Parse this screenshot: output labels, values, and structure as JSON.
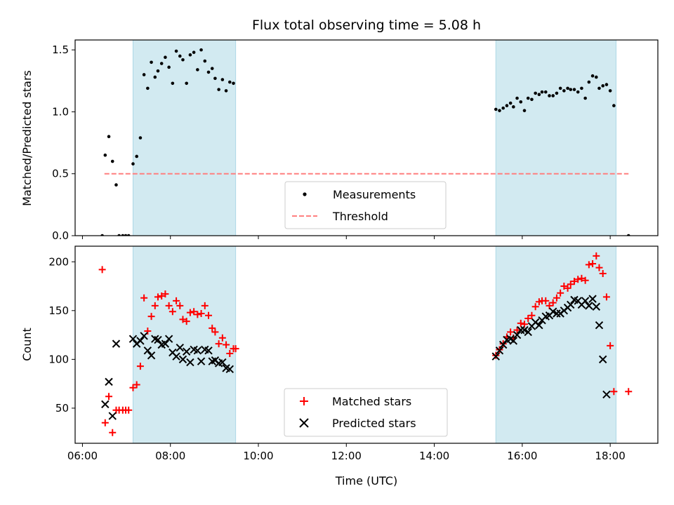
{
  "title": "Flux total observing time = 5.08 h",
  "xlabel": "Time (UTC)",
  "x_ticks": [
    "06:00",
    "08:00",
    "10:00",
    "12:00",
    "14:00",
    "16:00",
    "18:00"
  ],
  "colors": {
    "measurements": "#000000",
    "threshold": "#ff7f7f",
    "matched": "#ff0000",
    "predicted": "#000000",
    "span": "#add8e6"
  },
  "chart_data": [
    {
      "type": "scatter",
      "ylabel": "Matched/Predicted stars",
      "xlim": [
        "05:50",
        "19:05"
      ],
      "ylim": [
        0,
        1.58
      ],
      "y_ticks": [
        "0.0",
        "0.5",
        "1.0",
        "1.5"
      ],
      "grid": false,
      "legend_location": "lower center",
      "shaded_spans": [
        [
          "07:09",
          "09:29"
        ],
        [
          "15:24",
          "18:08"
        ]
      ],
      "threshold": {
        "name": "Threshold",
        "y": 0.5,
        "x": [
          "06:30",
          "18:25"
        ]
      },
      "series": [
        {
          "name": "Measurements",
          "points": [
            [
              "06:27",
              0.0
            ],
            [
              "06:31",
              0.65
            ],
            [
              "06:36",
              0.8
            ],
            [
              "06:41",
              0.6
            ],
            [
              "06:46",
              0.41
            ],
            [
              "06:50",
              0.0
            ],
            [
              "06:55",
              0.0
            ],
            [
              "06:59",
              0.0
            ],
            [
              "07:03",
              0.0
            ],
            [
              "07:09",
              0.58
            ],
            [
              "07:14",
              0.64
            ],
            [
              "07:19",
              0.79
            ],
            [
              "07:24",
              1.3
            ],
            [
              "07:29",
              1.19
            ],
            [
              "07:34",
              1.4
            ],
            [
              "07:39",
              1.28
            ],
            [
              "07:43",
              1.33
            ],
            [
              "07:48",
              1.39
            ],
            [
              "07:53",
              1.44
            ],
            [
              "07:58",
              1.36
            ],
            [
              "08:03",
              1.23
            ],
            [
              "08:08",
              1.49
            ],
            [
              "08:13",
              1.45
            ],
            [
              "08:17",
              1.42
            ],
            [
              "08:22",
              1.23
            ],
            [
              "08:27",
              1.46
            ],
            [
              "08:32",
              1.48
            ],
            [
              "08:37",
              1.34
            ],
            [
              "08:42",
              1.5
            ],
            [
              "08:47",
              1.41
            ],
            [
              "08:52",
              1.32
            ],
            [
              "08:57",
              1.35
            ],
            [
              "09:01",
              1.27
            ],
            [
              "09:06",
              1.18
            ],
            [
              "09:11",
              1.26
            ],
            [
              "09:16",
              1.17
            ],
            [
              "09:21",
              1.24
            ],
            [
              "09:26",
              1.23
            ],
            [
              "15:24",
              1.02
            ],
            [
              "15:29",
              1.01
            ],
            [
              "15:34",
              1.03
            ],
            [
              "15:39",
              1.05
            ],
            [
              "15:44",
              1.07
            ],
            [
              "15:48",
              1.04
            ],
            [
              "15:53",
              1.11
            ],
            [
              "15:58",
              1.08
            ],
            [
              "16:03",
              1.01
            ],
            [
              "16:08",
              1.11
            ],
            [
              "16:13",
              1.1
            ],
            [
              "16:18",
              1.15
            ],
            [
              "16:23",
              1.14
            ],
            [
              "16:27",
              1.16
            ],
            [
              "16:32",
              1.16
            ],
            [
              "16:37",
              1.13
            ],
            [
              "16:42",
              1.13
            ],
            [
              "16:47",
              1.15
            ],
            [
              "16:52",
              1.19
            ],
            [
              "16:57",
              1.17
            ],
            [
              "17:02",
              1.19
            ],
            [
              "17:06",
              1.18
            ],
            [
              "17:11",
              1.18
            ],
            [
              "17:16",
              1.16
            ],
            [
              "17:21",
              1.19
            ],
            [
              "17:26",
              1.11
            ],
            [
              "17:31",
              1.24
            ],
            [
              "17:36",
              1.29
            ],
            [
              "17:41",
              1.28
            ],
            [
              "17:45",
              1.19
            ],
            [
              "17:50",
              1.21
            ],
            [
              "17:55",
              1.22
            ],
            [
              "18:00",
              1.17
            ],
            [
              "18:05",
              1.05
            ],
            [
              "18:25",
              0.0
            ]
          ]
        }
      ]
    },
    {
      "type": "scatter",
      "ylabel": "Count",
      "xlim": [
        "05:50",
        "19:05"
      ],
      "ylim": [
        14,
        216
      ],
      "y_ticks": [
        "50",
        "100",
        "150",
        "200"
      ],
      "grid": false,
      "legend_location": "lower center",
      "shaded_spans": [
        [
          "07:09",
          "09:29"
        ],
        [
          "15:24",
          "18:08"
        ]
      ],
      "series": [
        {
          "name": "Matched stars",
          "marker": "plus",
          "points": [
            [
              "06:27",
              192
            ],
            [
              "06:31",
              35
            ],
            [
              "06:36",
              62
            ],
            [
              "06:41",
              25
            ],
            [
              "06:46",
              48
            ],
            [
              "06:50",
              48
            ],
            [
              "06:55",
              48
            ],
            [
              "06:59",
              48
            ],
            [
              "07:03",
              48
            ],
            [
              "07:09",
              71
            ],
            [
              "07:14",
              74
            ],
            [
              "07:19",
              93
            ],
            [
              "07:24",
              163
            ],
            [
              "07:29",
              129
            ],
            [
              "07:34",
              144
            ],
            [
              "07:39",
              155
            ],
            [
              "07:43",
              164
            ],
            [
              "07:48",
              165
            ],
            [
              "07:53",
              167
            ],
            [
              "07:58",
              155
            ],
            [
              "08:03",
              149
            ],
            [
              "08:08",
              160
            ],
            [
              "08:13",
              155
            ],
            [
              "08:17",
              141
            ],
            [
              "08:22",
              139
            ],
            [
              "08:27",
              148
            ],
            [
              "08:32",
              149
            ],
            [
              "08:37",
              146
            ],
            [
              "08:42",
              147
            ],
            [
              "08:47",
              155
            ],
            [
              "08:52",
              145
            ],
            [
              "08:57",
              132
            ],
            [
              "09:01",
              128
            ],
            [
              "09:06",
              116
            ],
            [
              "09:11",
              122
            ],
            [
              "09:16",
              115
            ],
            [
              "09:21",
              106
            ],
            [
              "09:26",
              111
            ],
            [
              "09:29",
              111
            ],
            [
              "15:24",
              104
            ],
            [
              "15:29",
              110
            ],
            [
              "15:34",
              116
            ],
            [
              "15:39",
              123
            ],
            [
              "15:44",
              128
            ],
            [
              "15:48",
              122
            ],
            [
              "15:53",
              130
            ],
            [
              "15:58",
              137
            ],
            [
              "16:03",
              136
            ],
            [
              "16:08",
              142
            ],
            [
              "16:13",
              145
            ],
            [
              "16:18",
              154
            ],
            [
              "16:23",
              159
            ],
            [
              "16:27",
              160
            ],
            [
              "16:32",
              160
            ],
            [
              "16:37",
              155
            ],
            [
              "16:42",
              158
            ],
            [
              "16:47",
              163
            ],
            [
              "16:52",
              168
            ],
            [
              "16:57",
              175
            ],
            [
              "17:02",
              173
            ],
            [
              "17:06",
              177
            ],
            [
              "17:11",
              180
            ],
            [
              "17:16",
              182
            ],
            [
              "17:21",
              183
            ],
            [
              "17:26",
              181
            ],
            [
              "17:31",
              197
            ],
            [
              "17:36",
              198
            ],
            [
              "17:41",
              206
            ],
            [
              "17:45",
              194
            ],
            [
              "17:50",
              188
            ],
            [
              "17:55",
              164
            ],
            [
              "18:00",
              114
            ],
            [
              "18:05",
              67
            ],
            [
              "18:25",
              67
            ]
          ]
        },
        {
          "name": "Predicted stars",
          "marker": "x",
          "points": [
            [
              "06:31",
              54
            ],
            [
              "06:36",
              77
            ],
            [
              "06:41",
              42
            ],
            [
              "06:46",
              116
            ],
            [
              "07:09",
              121
            ],
            [
              "07:14",
              116
            ],
            [
              "07:19",
              119
            ],
            [
              "07:24",
              124
            ],
            [
              "07:29",
              109
            ],
            [
              "07:34",
              104
            ],
            [
              "07:39",
              121
            ],
            [
              "07:43",
              120
            ],
            [
              "07:48",
              115
            ],
            [
              "07:53",
              116
            ],
            [
              "07:58",
              121
            ],
            [
              "08:03",
              107
            ],
            [
              "08:08",
              103
            ],
            [
              "08:13",
              112
            ],
            [
              "08:17",
              100
            ],
            [
              "08:22",
              108
            ],
            [
              "08:27",
              97
            ],
            [
              "08:32",
              110
            ],
            [
              "08:37",
              109
            ],
            [
              "08:42",
              98
            ],
            [
              "08:47",
              110
            ],
            [
              "08:52",
              109
            ],
            [
              "08:57",
              98
            ],
            [
              "09:01",
              99
            ],
            [
              "09:06",
              96
            ],
            [
              "09:11",
              97
            ],
            [
              "09:16",
              91
            ],
            [
              "09:21",
              90
            ],
            [
              "15:24",
              103
            ],
            [
              "15:29",
              109
            ],
            [
              "15:34",
              115
            ],
            [
              "15:39",
              120
            ],
            [
              "15:44",
              121
            ],
            [
              "15:48",
              119
            ],
            [
              "15:53",
              125
            ],
            [
              "15:58",
              130
            ],
            [
              "16:03",
              130
            ],
            [
              "16:08",
              128
            ],
            [
              "16:13",
              134
            ],
            [
              "16:18",
              138
            ],
            [
              "16:23",
              135
            ],
            [
              "16:27",
              140
            ],
            [
              "16:32",
              144
            ],
            [
              "16:37",
              145
            ],
            [
              "16:42",
              149
            ],
            [
              "16:47",
              147
            ],
            [
              "16:52",
              147
            ],
            [
              "16:57",
              150
            ],
            [
              "17:02",
              153
            ],
            [
              "17:06",
              156
            ],
            [
              "17:11",
              161
            ],
            [
              "17:16",
              160
            ],
            [
              "17:21",
              156
            ],
            [
              "17:26",
              160
            ],
            [
              "17:31",
              155
            ],
            [
              "17:36",
              162
            ],
            [
              "17:41",
              154
            ],
            [
              "17:45",
              135
            ],
            [
              "17:50",
              100
            ],
            [
              "17:55",
              64
            ]
          ]
        }
      ]
    }
  ]
}
